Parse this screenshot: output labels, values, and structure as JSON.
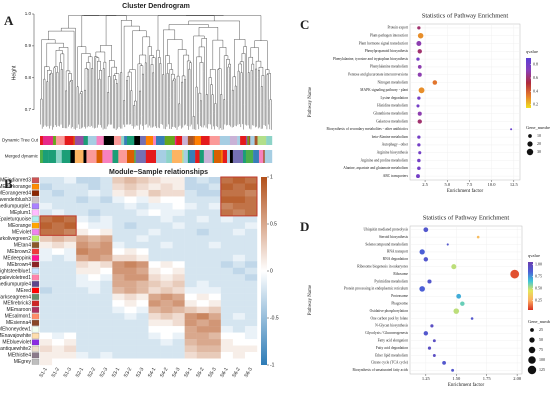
{
  "chart_data": [
    {
      "type": "dendrogram",
      "panel": "A",
      "title": "Cluster Dendrogram",
      "ylabel": "Height",
      "ylim": [
        0.63,
        1.0
      ],
      "yticks": [
        0.7,
        0.8,
        0.9,
        {
          "value": 1,
          "label": "1.0"
        }
      ],
      "tracks": [
        "Dynamic Tree Cut",
        "Merged dynamic"
      ]
    },
    {
      "type": "heatmap",
      "panel": "B",
      "title": "Module−Sample relationships",
      "rows": [
        "MEindianred3",
        "MEdarkorange",
        "MEorangered4",
        "MElavenderblush3",
        "MEmediumpurple1",
        "MEplum1",
        "MEpaleturquoise",
        "MEorange",
        "MEviolet",
        "MEdarkolivegreen2",
        "MEtan4",
        "MEbrown2",
        "MEdeeppink",
        "MEbrown4",
        "MElightsteelblue1",
        "MEpalevioletred1",
        "MEmediumpurple4",
        "MEred",
        "MEdarkseagreen4",
        "MEfirebrick3",
        "MEmaroon",
        "MEsalmon1",
        "MEsienna4",
        "MEhoneydew1",
        "MEnavajowhite",
        "MEblueviolet",
        "MEantiquewhite2",
        "MEthistle4",
        "MEgrey"
      ],
      "row_colors": [
        "#cd5555",
        "#ff8c00",
        "#8b2500",
        "#cdc1c5",
        "#ab82ff",
        "#ffbbff",
        "#afeeee",
        "#ffa500",
        "#ee82ee",
        "#bcee68",
        "#8b5a2b",
        "#ee3b3b",
        "#ff1493",
        "#8b2323",
        "#cae1ff",
        "#ff82ab",
        "#5d478b",
        "#ff0000",
        "#698b69",
        "#cd2626",
        "#b03060",
        "#ff8c69",
        "#8b4726",
        "#f0fff0",
        "#ffdead",
        "#8a2be2",
        "#eedfcc",
        "#8b7b8b",
        "#bebebe"
      ],
      "columns": [
        "S1-1",
        "S1-2",
        "S1-3",
        "S2-1",
        "S2-2",
        "S2-3",
        "S3-1",
        "S3-2",
        "S3-3",
        "S4-1",
        "S4-2",
        "S4-3",
        "S5-1",
        "S5-2",
        "S5-3",
        "S6-1",
        "S6-2",
        "S6-3"
      ],
      "values": [
        [
          -0.2,
          -0.2,
          -0.1,
          -0.3,
          -0.3,
          -0.2,
          0.3,
          0.4,
          0.3,
          0.2,
          0.1,
          0.1,
          -0.3,
          -0.2,
          -0.3,
          0.8,
          0.9,
          0.8
        ],
        [
          -0.3,
          -0.2,
          -0.2,
          -0.2,
          -0.3,
          -0.2,
          0.2,
          0.3,
          0.2,
          0.1,
          0.2,
          0.1,
          -0.3,
          -0.3,
          -0.2,
          0.9,
          0.8,
          0.9
        ],
        [
          -0.2,
          -0.3,
          -0.2,
          -0.2,
          -0.1,
          -0.2,
          0.1,
          0.2,
          0.1,
          0.3,
          0.2,
          0.2,
          -0.2,
          -0.3,
          -0.3,
          0.8,
          0.8,
          0.7
        ],
        [
          -0.2,
          -0.2,
          -0.2,
          -0.3,
          -0.2,
          -0.3,
          -0.1,
          0,
          -0.1,
          0.1,
          0,
          0,
          -0.2,
          -0.2,
          -0.2,
          0.9,
          0.9,
          0.8
        ],
        [
          -0.1,
          -0.2,
          -0.2,
          -0.2,
          -0.2,
          -0.2,
          -0.2,
          -0.1,
          -0.2,
          -0.1,
          -0.1,
          0,
          -0.1,
          -0.2,
          -0.1,
          0.7,
          0.8,
          0.8
        ],
        [
          -0.2,
          -0.1,
          -0.2,
          -0.2,
          -0.3,
          -0.2,
          -0.2,
          -0.2,
          -0.1,
          0,
          -0.1,
          -0.1,
          -0.2,
          -0.2,
          -0.2,
          0.8,
          0.7,
          0.8
        ],
        [
          0.8,
          0.9,
          0.8,
          -0.1,
          -0.2,
          -0.1,
          -0.2,
          -0.2,
          -0.2,
          -0.2,
          -0.1,
          -0.2,
          -0.2,
          -0.1,
          -0.2,
          -0.1,
          -0.2,
          -0.2
        ],
        [
          0.9,
          0.8,
          0.9,
          0,
          -0.1,
          -0.1,
          -0.2,
          -0.3,
          -0.2,
          -0.2,
          -0.2,
          -0.1,
          -0.2,
          -0.2,
          -0.2,
          -0.2,
          -0.2,
          -0.1
        ],
        [
          0.8,
          0.8,
          0.7,
          0.1,
          0,
          0.1,
          -0.2,
          -0.2,
          -0.2,
          -0.1,
          -0.2,
          -0.2,
          -0.2,
          -0.3,
          -0.2,
          -0.2,
          -0.1,
          -0.2
        ],
        [
          0.3,
          0.4,
          0.3,
          0.5,
          0.4,
          0.5,
          -0.2,
          -0.2,
          -0.1,
          -0.2,
          -0.2,
          -0.2,
          -0.2,
          -0.2,
          -0.2,
          -0.2,
          -0.2,
          -0.2
        ],
        [
          0.1,
          0.2,
          0.1,
          0.6,
          0.5,
          0.6,
          -0.1,
          -0.2,
          -0.2,
          -0.2,
          -0.1,
          -0.2,
          -0.2,
          -0.2,
          -0.1,
          -0.2,
          -0.2,
          -0.2
        ],
        [
          -0.1,
          0,
          -0.1,
          0.7,
          0.6,
          0.6,
          0,
          0.1,
          0,
          -0.2,
          -0.2,
          -0.2,
          -0.2,
          -0.2,
          -0.2,
          -0.2,
          -0.2,
          -0.2
        ],
        [
          -0.1,
          -0.2,
          -0.1,
          0.5,
          0.6,
          0.5,
          0.2,
          0.2,
          0.1,
          -0.2,
          -0.2,
          -0.2,
          -0.2,
          -0.2,
          -0.2,
          -0.2,
          -0.1,
          -0.2
        ],
        [
          -0.2,
          -0.2,
          -0.2,
          0.2,
          0.1,
          0.2,
          0.6,
          0.7,
          0.6,
          0,
          0.1,
          0,
          -0.2,
          -0.2,
          -0.2,
          -0.3,
          -0.2,
          -0.3
        ],
        [
          -0.2,
          -0.2,
          -0.2,
          0.1,
          0.1,
          0,
          0.6,
          0.6,
          0.5,
          0.1,
          0,
          0.1,
          -0.2,
          -0.2,
          -0.2,
          -0.2,
          -0.3,
          -0.2
        ],
        [
          -0.2,
          -0.2,
          -0.2,
          -0.1,
          0,
          -0.1,
          0.5,
          0.6,
          0.6,
          0.2,
          0.1,
          0.2,
          -0.2,
          -0.2,
          -0.2,
          -0.2,
          -0.2,
          -0.3
        ],
        [
          -0.2,
          -0.2,
          -0.2,
          -0.1,
          -0.1,
          -0.2,
          0.5,
          0.5,
          0.4,
          0.3,
          0.2,
          0.3,
          -0.2,
          -0.1,
          -0.2,
          -0.2,
          -0.2,
          -0.2
        ],
        [
          -0.3,
          -0.2,
          -0.2,
          -0.2,
          -0.1,
          -0.2,
          0.4,
          0.5,
          0.4,
          0.2,
          0.3,
          0.2,
          -0.1,
          -0.1,
          -0.1,
          -0.2,
          -0.2,
          -0.2
        ],
        [
          -0.2,
          -0.2,
          -0.2,
          -0.2,
          -0.2,
          -0.2,
          0.1,
          0.2,
          0.1,
          0.5,
          0.6,
          0.5,
          0,
          0.1,
          0,
          -0.2,
          -0.2,
          -0.2
        ],
        [
          -0.2,
          -0.2,
          -0.2,
          -0.2,
          -0.2,
          -0.2,
          0,
          0.1,
          0,
          0.6,
          0.5,
          0.6,
          0.1,
          0,
          0.1,
          -0.2,
          -0.2,
          -0.2
        ],
        [
          -0.2,
          -0.2,
          -0.2,
          -0.2,
          -0.2,
          -0.2,
          -0.1,
          0,
          -0.1,
          0.4,
          0.5,
          0.4,
          0.3,
          0.2,
          0.3,
          -0.2,
          -0.2,
          -0.2
        ],
        [
          -0.2,
          -0.2,
          -0.2,
          -0.2,
          -0.2,
          -0.2,
          -0.2,
          -0.1,
          -0.2,
          0.2,
          0.3,
          0.2,
          0.6,
          0.7,
          0.5,
          -0.2,
          -0.1,
          -0.2
        ],
        [
          -0.2,
          -0.2,
          -0.2,
          -0.2,
          -0.2,
          -0.2,
          -0.2,
          -0.2,
          -0.2,
          0.1,
          0.1,
          0.2,
          0.6,
          0.5,
          0.6,
          -0.2,
          -0.2,
          -0.2
        ],
        [
          -0.2,
          -0.2,
          -0.2,
          -0.2,
          -0.2,
          -0.2,
          -0.2,
          -0.2,
          -0.2,
          0,
          0,
          0,
          0.5,
          0.6,
          0.6,
          -0.1,
          -0.2,
          -0.1
        ],
        [
          0,
          -0.1,
          0,
          -0.2,
          -0.2,
          -0.2,
          -0.2,
          -0.2,
          -0.2,
          -0.1,
          0,
          -0.1,
          0.5,
          0.5,
          0.4,
          0,
          0,
          -0.1
        ],
        [
          0.1,
          0,
          0.1,
          -0.2,
          -0.2,
          -0.2,
          -0.2,
          -0.2,
          -0.2,
          -0.2,
          -0.1,
          -0.2,
          0.4,
          0.5,
          0.5,
          0.1,
          0,
          0
        ],
        [
          0.2,
          0.1,
          0.2,
          -0.2,
          -0.2,
          -0.2,
          -0.2,
          -0.2,
          -0.2,
          -0.2,
          -0.2,
          -0.2,
          0.3,
          0.4,
          0.4,
          0.1,
          0.1,
          0.1
        ],
        [
          0.1,
          0.1,
          0.1,
          -0.1,
          -0.2,
          -0.1,
          -0.2,
          -0.2,
          -0.2,
          -0.2,
          -0.2,
          -0.2,
          0.2,
          0.3,
          0.3,
          0,
          0.1,
          0
        ],
        [
          0.1,
          0,
          0,
          0,
          0,
          0,
          0,
          0,
          0,
          0,
          0,
          0,
          0,
          0,
          0,
          0,
          0,
          0
        ]
      ],
      "clim": [
        -1,
        1
      ],
      "cticks": [
        1,
        0.5,
        0,
        -0.5,
        -1
      ],
      "colormap": [
        "#2c7bb6",
        "#ffffff",
        "#b2501a"
      ]
    },
    {
      "type": "dot",
      "panel": "C",
      "title": "Statistics of Pathway Enrichment",
      "xlabel": "Enrichment factor",
      "ylabel": "Pathway Name",
      "categories": [
        "Protein export",
        "Plant-pathogen interaction",
        "Plant hormone signal transduction",
        "Phenylpropanoid biosynthesis",
        "Phenylalanine, tyrosine and tryptophan biosynthesis",
        "Phenylalanine metabolism",
        "Pentose and glucuronate interconversions",
        "Nitrogen metabolism",
        "MAPK signaling pathway - plant",
        "Lysine degradation",
        "Histidine metabolism",
        "Glutathione metabolism",
        "Galactose metabolism",
        "Biosynthesis of secondary metabolites - other antibiotics",
        "beta-Alanine metabolism",
        "Autophagy - other",
        "Arginine biosynthesis",
        "Arginine and proline metabolism",
        "Alanine, aspartate and glutamate metabolism",
        "ABC transporters"
      ],
      "x": [
        1.8,
        2.0,
        1.8,
        1.9,
        1.7,
        1.9,
        1.9,
        3.6,
        2.1,
        1.8,
        1.7,
        1.9,
        1.9,
        12.2,
        1.8,
        1.8,
        1.9,
        1.8,
        1.8,
        1.7
      ],
      "qvalue": [
        0.6,
        0.3,
        0.7,
        0.6,
        0.8,
        0.7,
        0.7,
        0.35,
        0.3,
        0.8,
        0.8,
        0.7,
        0.6,
        0.85,
        0.8,
        0.8,
        0.8,
        0.8,
        0.8,
        0.8
      ],
      "gene_number": [
        8,
        22,
        18,
        14,
        8,
        10,
        12,
        15,
        25,
        8,
        7,
        12,
        14,
        3,
        8,
        8,
        7,
        9,
        9,
        11
      ],
      "xlim": [
        0.8,
        13.2
      ],
      "xticks": [
        2.5,
        {
          "value": 5,
          "label": "5.0"
        },
        7.5,
        {
          "value": 10,
          "label": "10.0"
        },
        12.5
      ],
      "grid": true,
      "color_label": "qvalue",
      "clim": [
        0.15,
        0.9
      ],
      "cticks": [
        0.8,
        0.6,
        0.4,
        0.2
      ],
      "colormap": [
        "#f0e021",
        "#e57a2c",
        "#b02a3c",
        "#8a3fb8",
        "#5b3fd6"
      ],
      "size_label": "Gene_number",
      "size_legend": [
        10,
        20,
        30
      ]
    },
    {
      "type": "dot",
      "panel": "D",
      "title": "Statistics of Pathway Enrichment",
      "xlabel": "Enrichment factor",
      "ylabel": "Pathway Name",
      "categories": [
        "Ubiquitin mediated proteolysis",
        "Steroid biosynthesis",
        "Selenocompound metabolism",
        "RNA transport",
        "RNA degradation",
        "Ribosome biogenesis in eukaryotes",
        "Ribosome",
        "Pyrimidine metabolism",
        "Protein processing in endoplasmic reticulum",
        "Proteasome",
        "Phagosome",
        "Oxidative phosphorylation",
        "One carbon pool by folate",
        "N-Glycan biosynthesis",
        "Glycolysis / Gluconeogenesis",
        "Fatty acid elongation",
        "Fatty acid degradation",
        "Ether lipid metabolism",
        "Citrate cycle (TCA cycle)",
        "Biosynthesis of unsaturated fatty acids"
      ],
      "x": [
        1.25,
        1.68,
        1.43,
        1.22,
        1.25,
        1.48,
        1.98,
        1.28,
        1.22,
        1.52,
        1.55,
        1.5,
        1.63,
        1.3,
        1.25,
        1.32,
        1.28,
        1.32,
        1.4,
        1.47
      ],
      "qvalue": [
        0.9,
        0.3,
        0.9,
        0.85,
        0.9,
        0.5,
        0.1,
        0.9,
        0.85,
        0.7,
        0.6,
        0.5,
        0.9,
        0.95,
        0.9,
        0.95,
        0.95,
        0.95,
        0.9,
        0.9
      ],
      "gene_number": [
        40,
        12,
        8,
        50,
        35,
        45,
        135,
        30,
        55,
        40,
        35,
        55,
        12,
        18,
        35,
        15,
        18,
        15,
        25,
        15
      ],
      "xlim": [
        1.12,
        2.04
      ],
      "xticks": [
        1.25,
        {
          "value": 1.5,
          "label": "1.50"
        },
        1.75,
        {
          "value": 2,
          "label": "2.00"
        }
      ],
      "grid": true,
      "color_label": "qvalue",
      "clim": [
        0.05,
        1.05
      ],
      "cticks": [
        {
          "value": 1,
          "label": "1.00"
        },
        0.75,
        {
          "value": 0.5,
          "label": "0.50"
        },
        0.25
      ],
      "colormap": [
        "#d7301f",
        "#fdae61",
        "#e6e65a",
        "#3ec6d8",
        "#4b5fd6",
        "#6a3fb0"
      ],
      "size_label": "Gene_number",
      "size_legend": [
        25,
        50,
        75,
        100,
        125
      ]
    }
  ]
}
